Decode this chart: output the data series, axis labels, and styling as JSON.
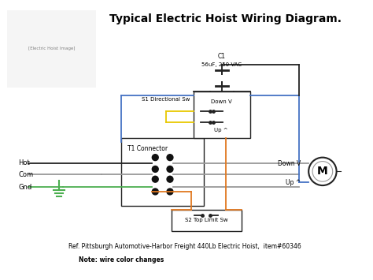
{
  "title": "Typical Electric Hoist Wiring Diagram.",
  "ref_text": "Ref. Pittsburgh Automotive-Harbor Freight 440Lb Electric Hoist,  item#60346",
  "note_text": "Note: wire color changes",
  "c1_label": "C1",
  "c1_sub": "56uF, 250 VAC",
  "s1_label": "S1 Directional Sw",
  "s2_label": "S2 Top Limit Sw",
  "t1_label": "T1 Connector",
  "down_v": "Down V",
  "up_v": "Up ^",
  "hot": "Hot",
  "com": "Com",
  "gnd": "Gnd",
  "motor_label": "M",
  "bg_color": "#ffffff",
  "wire_black": "#222222",
  "wire_gray": "#999999",
  "wire_blue": "#4472c4",
  "wire_orange": "#e07820",
  "wire_yellow": "#e8c800",
  "wire_green": "#4caf50",
  "box_border": "#222222",
  "connector_color": "#111111"
}
